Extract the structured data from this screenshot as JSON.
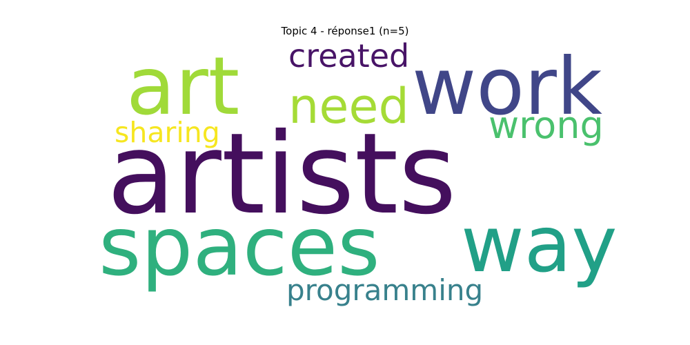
{
  "title": "Topic 4 - réponse1 (n=5)",
  "words": [
    {
      "text": "artists",
      "color": "#440f5d"
    },
    {
      "text": "spaces",
      "color": "#2fb07e"
    },
    {
      "text": "art",
      "color": "#a0da39"
    },
    {
      "text": "work",
      "color": "#404688"
    },
    {
      "text": "way",
      "color": "#21a087"
    },
    {
      "text": "need",
      "color": "#a5db36"
    },
    {
      "text": "created",
      "color": "#481467"
    },
    {
      "text": "wrong",
      "color": "#4ac16d"
    },
    {
      "text": "sharing",
      "color": "#f6e620"
    },
    {
      "text": "programming",
      "color": "#38818c"
    }
  ]
}
